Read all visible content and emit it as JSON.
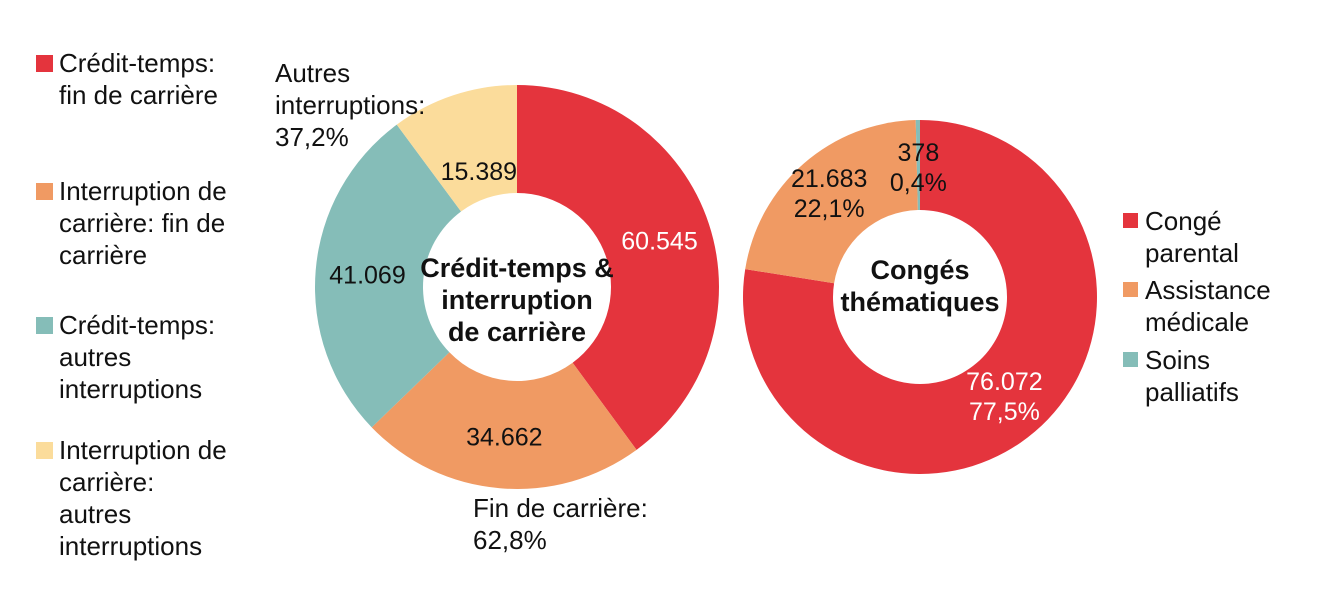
{
  "figure": {
    "background": "#ffffff",
    "text_color": "#111111"
  },
  "chart_data": [
    {
      "type": "pie",
      "subtype": "donut",
      "title": "Crédit-temps & interruption de carrière",
      "center_lines": [
        "Crédit-temps &",
        "interruption",
        "de carrière"
      ],
      "start_angle_deg": 0,
      "direction": "clockwise",
      "segments": [
        {
          "name": "Crédit-temps: fin de carrière",
          "value": 60545,
          "display_lines": [
            "60.545"
          ],
          "color": "#e4343d",
          "value_color": "#ffffff"
        },
        {
          "name": "Interruption de carrière: fin de carrière",
          "value": 34662,
          "display_lines": [
            "34.662"
          ],
          "color": "#f09a63",
          "value_color": "#111111"
        },
        {
          "name": "Crédit-temps: autres interruptions",
          "value": 41069,
          "display_lines": [
            "41.069"
          ],
          "color": "#85bdb8",
          "value_color": "#111111"
        },
        {
          "name": "Interruption de carrière: autres interruptions",
          "value": 15389,
          "display_lines": [
            "15.389"
          ],
          "color": "#fbdc9b",
          "value_color": "#111111"
        }
      ],
      "annotations": [
        {
          "text": "Autres interruptions: 37,2%",
          "lines": [
            "Autres",
            "interruptions:",
            "37,2%"
          ]
        },
        {
          "text": "Fin de carrière: 62,8%",
          "lines": [
            "Fin de carrière:",
            "62,8%"
          ]
        }
      ]
    },
    {
      "type": "pie",
      "subtype": "donut",
      "title": "Congés thématiques",
      "center_lines": [
        "Congés",
        "thématiques"
      ],
      "start_angle_deg": 0,
      "direction": "clockwise",
      "segments": [
        {
          "name": "Congé parental",
          "value": 76072,
          "percent": "77,5%",
          "display_lines": [
            "76.072",
            "77,5%"
          ],
          "color": "#e4343d",
          "value_color": "#ffffff"
        },
        {
          "name": "Assistance médicale",
          "value": 21683,
          "percent": "22,1%",
          "display_lines": [
            "21.683",
            "22,1%"
          ],
          "color": "#f09a63",
          "value_color": "#111111"
        },
        {
          "name": "Soins palliatifs",
          "value": 378,
          "percent": "0,4%",
          "display_lines": [
            "378",
            "0,4%"
          ],
          "color": "#85bdb8",
          "value_color": "#111111"
        }
      ],
      "annotations": []
    }
  ],
  "legend_left": {
    "items": [
      {
        "lines": [
          "Crédit-temps:",
          "fin de carrière"
        ],
        "color": "#e4343d"
      },
      {
        "lines": [
          "Interruption de",
          "carrière: fin de",
          "carrière"
        ],
        "color": "#f09a63"
      },
      {
        "lines": [
          "Crédit-temps:",
          "autres",
          "interruptions"
        ],
        "color": "#85bdb8"
      },
      {
        "lines": [
          "Interruption de",
          "carrière:",
          "autres",
          "interruptions"
        ],
        "color": "#fbdc9b"
      }
    ]
  },
  "legend_right": {
    "items": [
      {
        "lines": [
          "Congé",
          "parental"
        ],
        "color": "#e4343d"
      },
      {
        "lines": [
          "Assistance",
          "médicale"
        ],
        "color": "#f09a63"
      },
      {
        "lines": [
          "Soins",
          "palliatifs"
        ],
        "color": "#85bdb8"
      }
    ]
  }
}
